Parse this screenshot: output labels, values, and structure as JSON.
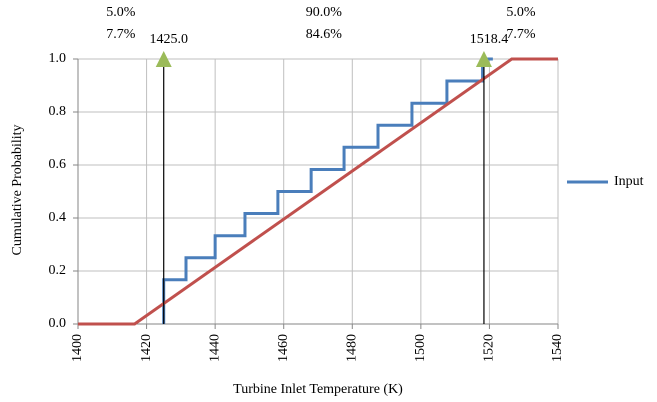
{
  "chart_data": {
    "type": "line",
    "x_label": "Turbine Inlet Temperature (K)",
    "y_label": "Cumulative Probability",
    "xlim": [
      1400,
      1540
    ],
    "xticks": [
      1400,
      1420,
      1440,
      1460,
      1480,
      1500,
      1520,
      1540
    ],
    "ylim": [
      0,
      1
    ],
    "yticks": [
      {
        "value": 0,
        "label": "0.0"
      },
      {
        "value": 0.2,
        "label": "0.2"
      },
      {
        "value": 0.4,
        "label": "0.4"
      },
      {
        "value": 0.6,
        "label": "0.6"
      },
      {
        "value": 0.8,
        "label": "0.8"
      },
      {
        "value": 1,
        "label": "1.0"
      }
    ],
    "grid": true,
    "series": [
      {
        "name": "Input",
        "color": "#4a7ebb",
        "x": [
          1425,
          1425,
          1431.5,
          1431.5,
          1440,
          1440,
          1448.7,
          1448.7,
          1458.3,
          1458.3,
          1468,
          1468,
          1477.6,
          1477.6,
          1487.5,
          1487.5,
          1497.4,
          1497.4,
          1507.6,
          1507.6,
          1518,
          1518,
          1521
        ],
        "values": [
          0,
          0.167,
          0.167,
          0.25,
          0.25,
          0.333,
          0.333,
          0.417,
          0.417,
          0.5,
          0.5,
          0.583,
          0.583,
          0.667,
          0.667,
          0.75,
          0.75,
          0.833,
          0.833,
          0.917,
          0.917,
          1,
          1
        ]
      },
      {
        "color": "#c0504d",
        "x": [
          1400,
          1416.5,
          1526.5,
          1540
        ],
        "values": [
          0,
          0,
          1,
          1
        ]
      }
    ],
    "legend": "right",
    "markers": {
      "color": "#9bbb59",
      "values": [
        {
          "value": 1425,
          "label": "1425.0"
        },
        {
          "value": 1518.4,
          "label": "1518.4"
        }
      ]
    },
    "regions": [
      [
        "5.0%",
        "7.7%"
      ],
      [
        "90.0%",
        "84.6%"
      ],
      [
        "5.0%",
        "7.7%"
      ]
    ]
  }
}
